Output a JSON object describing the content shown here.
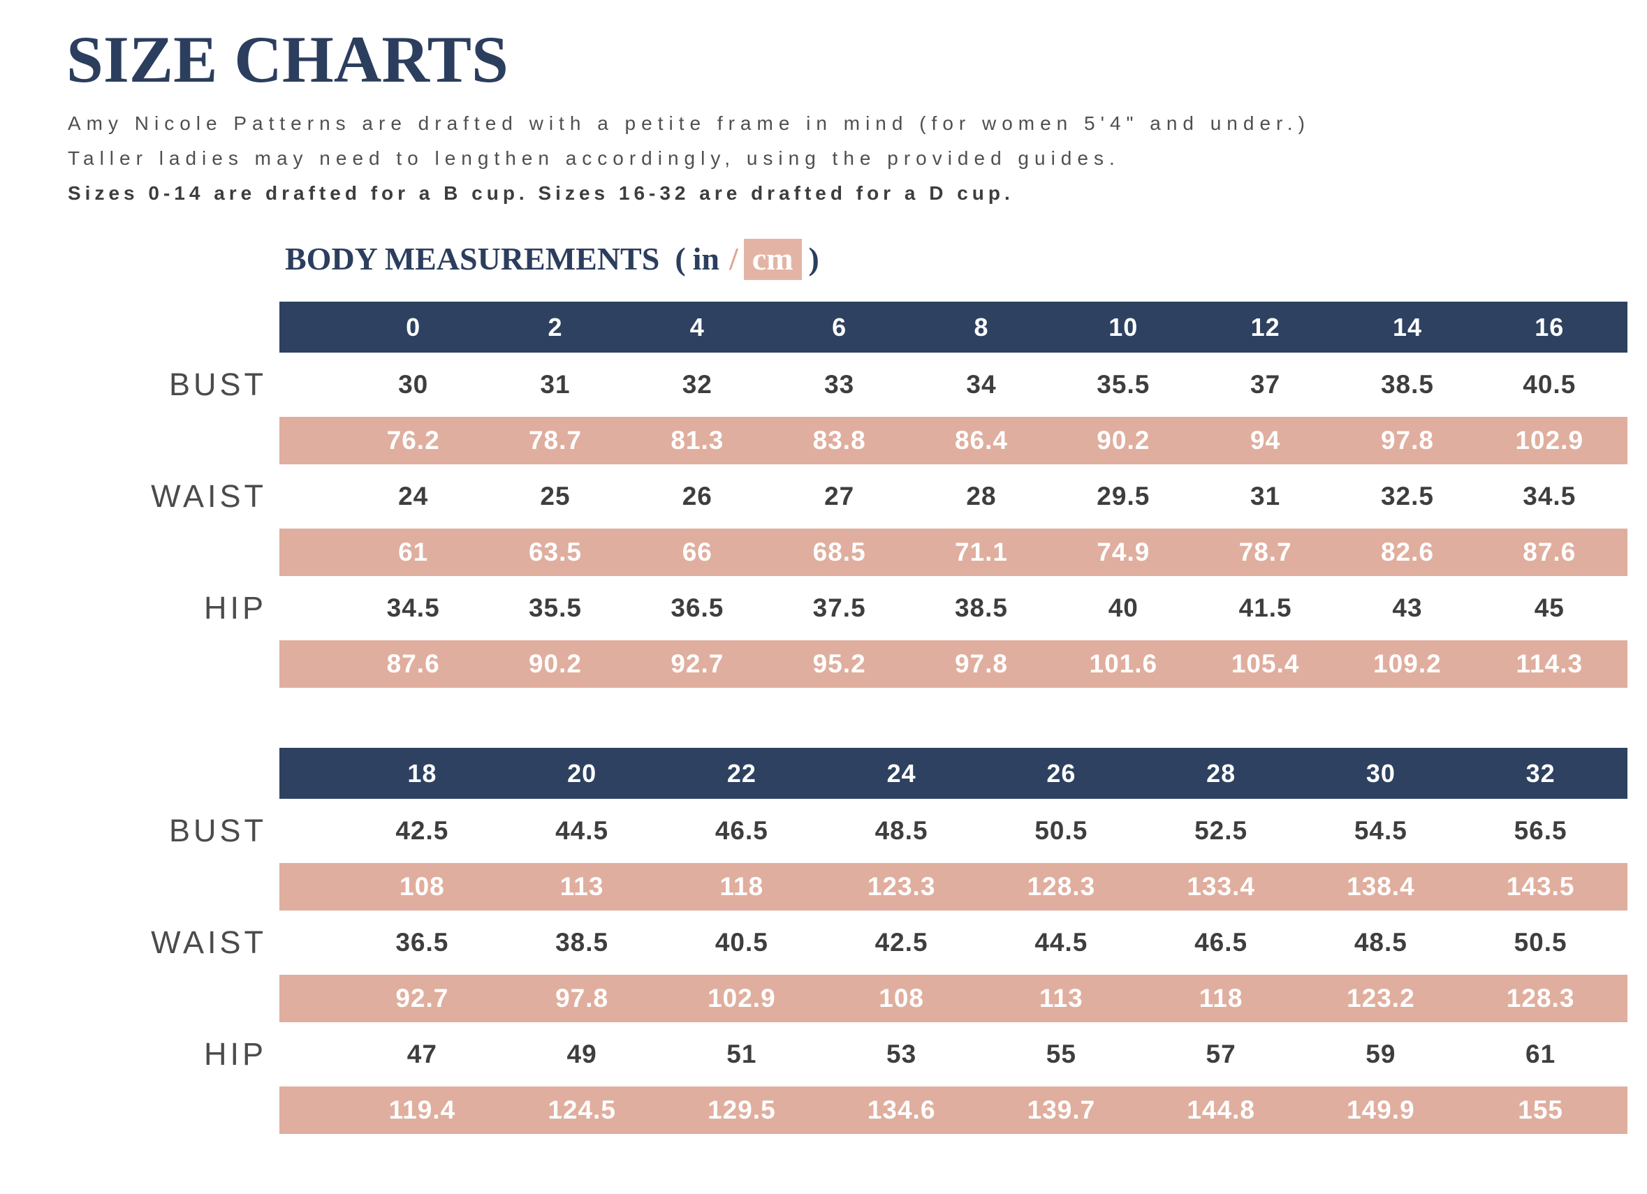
{
  "header": {
    "title": "SIZE CHARTS",
    "intro_lines": [
      "Amy Nicole Patterns are drafted with a petite frame in mind (for women 5'4\" and under.)",
      "Taller ladies may need to lengthen accordingly, using the provided guides.",
      "Sizes 0-14 are drafted for a B cup. Sizes 16-32 are drafted for a D cup."
    ]
  },
  "section": {
    "heading": "BODY MEASUREMENTS",
    "paren_open": "(",
    "unit_in": "in",
    "separator": "/",
    "unit_cm": "cm",
    "paren_close": ")"
  },
  "colors": {
    "navy": "#2e4160",
    "title_navy": "#2c3e5e",
    "salmon": "#e0ae9e",
    "cm_chip_salmon": "#e3b4a5",
    "text_gray": "#4f4f4f",
    "value_gray": "#3e3e3e",
    "white": "#ffffff"
  },
  "tables": [
    {
      "sizes": [
        "0",
        "2",
        "4",
        "6",
        "8",
        "10",
        "12",
        "14",
        "16"
      ],
      "rows": [
        {
          "label": "BUST",
          "in": [
            "30",
            "31",
            "32",
            "33",
            "34",
            "35.5",
            "37",
            "38.5",
            "40.5"
          ],
          "cm": [
            "76.2",
            "78.7",
            "81.3",
            "83.8",
            "86.4",
            "90.2",
            "94",
            "97.8",
            "102.9"
          ]
        },
        {
          "label": "WAIST",
          "in": [
            "24",
            "25",
            "26",
            "27",
            "28",
            "29.5",
            "31",
            "32.5",
            "34.5"
          ],
          "cm": [
            "61",
            "63.5",
            "66",
            "68.5",
            "71.1",
            "74.9",
            "78.7",
            "82.6",
            "87.6"
          ]
        },
        {
          "label": "HIP",
          "in": [
            "34.5",
            "35.5",
            "36.5",
            "37.5",
            "38.5",
            "40",
            "41.5",
            "43",
            "45"
          ],
          "cm": [
            "87.6",
            "90.2",
            "92.7",
            "95.2",
            "97.8",
            "101.6",
            "105.4",
            "109.2",
            "114.3"
          ]
        }
      ]
    },
    {
      "sizes": [
        "18",
        "20",
        "22",
        "24",
        "26",
        "28",
        "30",
        "32"
      ],
      "rows": [
        {
          "label": "BUST",
          "in": [
            "42.5",
            "44.5",
            "46.5",
            "48.5",
            "50.5",
            "52.5",
            "54.5",
            "56.5"
          ],
          "cm": [
            "108",
            "113",
            "118",
            "123.3",
            "128.3",
            "133.4",
            "138.4",
            "143.5"
          ]
        },
        {
          "label": "WAIST",
          "in": [
            "36.5",
            "38.5",
            "40.5",
            "42.5",
            "44.5",
            "46.5",
            "48.5",
            "50.5"
          ],
          "cm": [
            "92.7",
            "97.8",
            "102.9",
            "108",
            "113",
            "118",
            "123.2",
            "128.3"
          ]
        },
        {
          "label": "HIP",
          "in": [
            "47",
            "49",
            "51",
            "53",
            "55",
            "57",
            "59",
            "61"
          ],
          "cm": [
            "119.4",
            "124.5",
            "129.5",
            "134.6",
            "139.7",
            "144.8",
            "149.9",
            "155"
          ]
        }
      ]
    }
  ]
}
